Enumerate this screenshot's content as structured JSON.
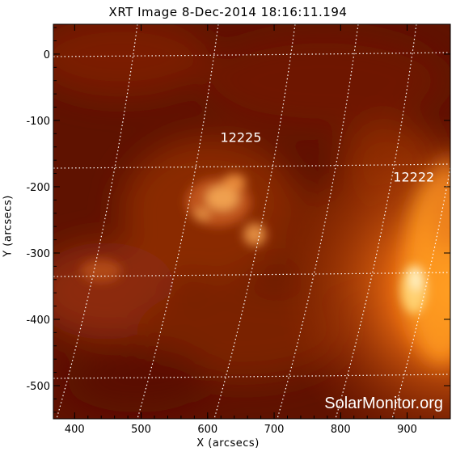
{
  "title": "XRT Image   8-Dec-2014  18:16:11.194",
  "xlabel": "X (arcsecs)",
  "ylabel": "Y (arcsecs)",
  "x_ticks": [
    "400",
    "500",
    "600",
    "700",
    "800",
    "900"
  ],
  "y_ticks": [
    "0",
    "-100",
    "-200",
    "-300",
    "-400",
    "-500"
  ],
  "active_regions": [
    {
      "label": "12225",
      "x": 650,
      "y": -125
    },
    {
      "label": "12222",
      "x": 910,
      "y": -185
    }
  ],
  "watermark": "SolarMonitor.org",
  "map": {
    "x_range": [
      368,
      965
    ],
    "y_range": [
      -550,
      45
    ],
    "colormap": "hinode-xrt red/orange",
    "grid": "heliographic dotted, white"
  },
  "colors": {
    "background": "#5a0f00",
    "bright": "#ffb040",
    "grid": "#ffffff"
  }
}
